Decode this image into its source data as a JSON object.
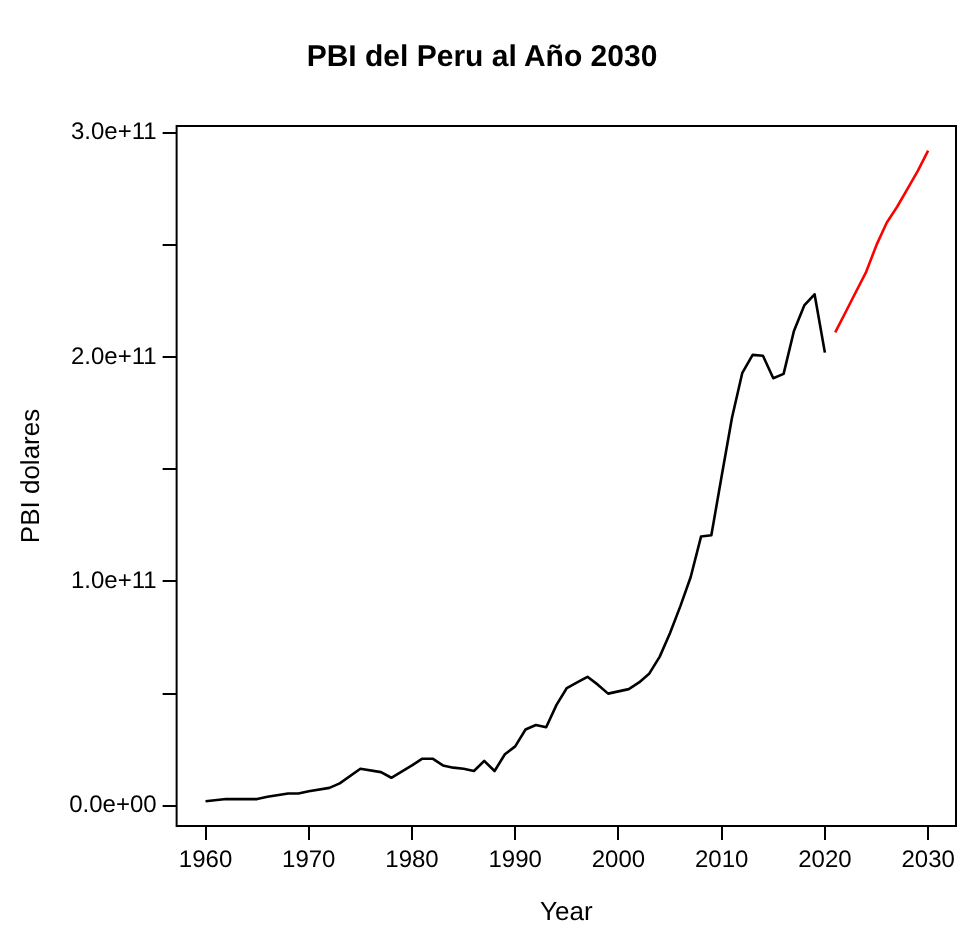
{
  "chart_data": {
    "type": "line",
    "title": "PBI del Peru al Año 2030",
    "xlabel": "Year",
    "ylabel": "PBI dolares",
    "xlim": [
      1957.2,
      2032.7
    ],
    "xticks": [
      1960,
      1970,
      1980,
      1990,
      2000,
      2010,
      2020,
      2030
    ],
    "ylim": [
      -9000000000.0,
      303000000000.0
    ],
    "yticks": [
      {
        "value": 0,
        "label": "0.0e+00"
      },
      {
        "value": 50000000000.0,
        "label": null
      },
      {
        "value": 100000000000.0,
        "label": "1.0e+11"
      },
      {
        "value": 150000000000.0,
        "label": null
      },
      {
        "value": 200000000000.0,
        "label": "2.0e+11"
      },
      {
        "value": 250000000000.0,
        "label": null
      },
      {
        "value": 300000000000.0,
        "label": "3.0e+11"
      }
    ],
    "marker": "none",
    "line_style": "solid",
    "series": [
      {
        "color": "#000000",
        "x": [
          1960,
          1962,
          1965,
          1966,
          1968,
          1969,
          1970,
          1972,
          1973,
          1975,
          1977,
          1978,
          1980,
          1981,
          1982,
          1983,
          1984,
          1985,
          1986,
          1987,
          1988,
          1989,
          1990,
          1991,
          1992,
          1993,
          1994,
          1995,
          1996,
          1997,
          1998,
          1999,
          2000,
          2001,
          2002,
          2003,
          2004,
          2005,
          2006,
          2007,
          2008,
          2009,
          2010,
          2011,
          2012,
          2013,
          2014,
          2015,
          2016,
          2017,
          2018,
          2019,
          2020
        ],
        "values": [
          2000000000.0,
          3000000000.0,
          3000000000.0,
          4000000000.0,
          5500000000.0,
          5500000000.0,
          6500000000.0,
          8000000000.0,
          10000000000.0,
          16500000000.0,
          15000000000.0,
          12500000000.0,
          18000000000.0,
          21000000000.0,
          21000000000.0,
          18000000000.0,
          17000000000.0,
          16500000000.0,
          15500000000.0,
          20000000000.0,
          15500000000.0,
          23000000000.0,
          26500000000.0,
          34000000000.0,
          36000000000.0,
          35000000000.0,
          45000000000.0,
          52500000000.0,
          55000000000.0,
          57500000000.0,
          54000000000.0,
          50000000000.0,
          51000000000.0,
          52000000000.0,
          55000000000.0,
          59000000000.0,
          66500000000.0,
          77000000000.0,
          89000000000.0,
          102000000000.0,
          120000000000.0,
          120600000000.0,
          147000000000.0,
          173000000000.0,
          193000000000.0,
          201000000000.0,
          200600000000.0,
          190600000000.0,
          192500000000.0,
          211600000000.0,
          223000000000.0,
          228000000000.0,
          202000000000.0
        ]
      },
      {
        "color": "#ff0000",
        "x": [
          2021,
          2022,
          2023,
          2024,
          2025,
          2026,
          2027,
          2028,
          2029,
          2030
        ],
        "values": [
          211000000000.0,
          220000000000.0,
          229000000000.0,
          238000000000.0,
          250000000000.0,
          260000000000.0,
          267000000000.0,
          275000000000.0,
          283000000000.0,
          292000000000.0
        ]
      }
    ]
  }
}
